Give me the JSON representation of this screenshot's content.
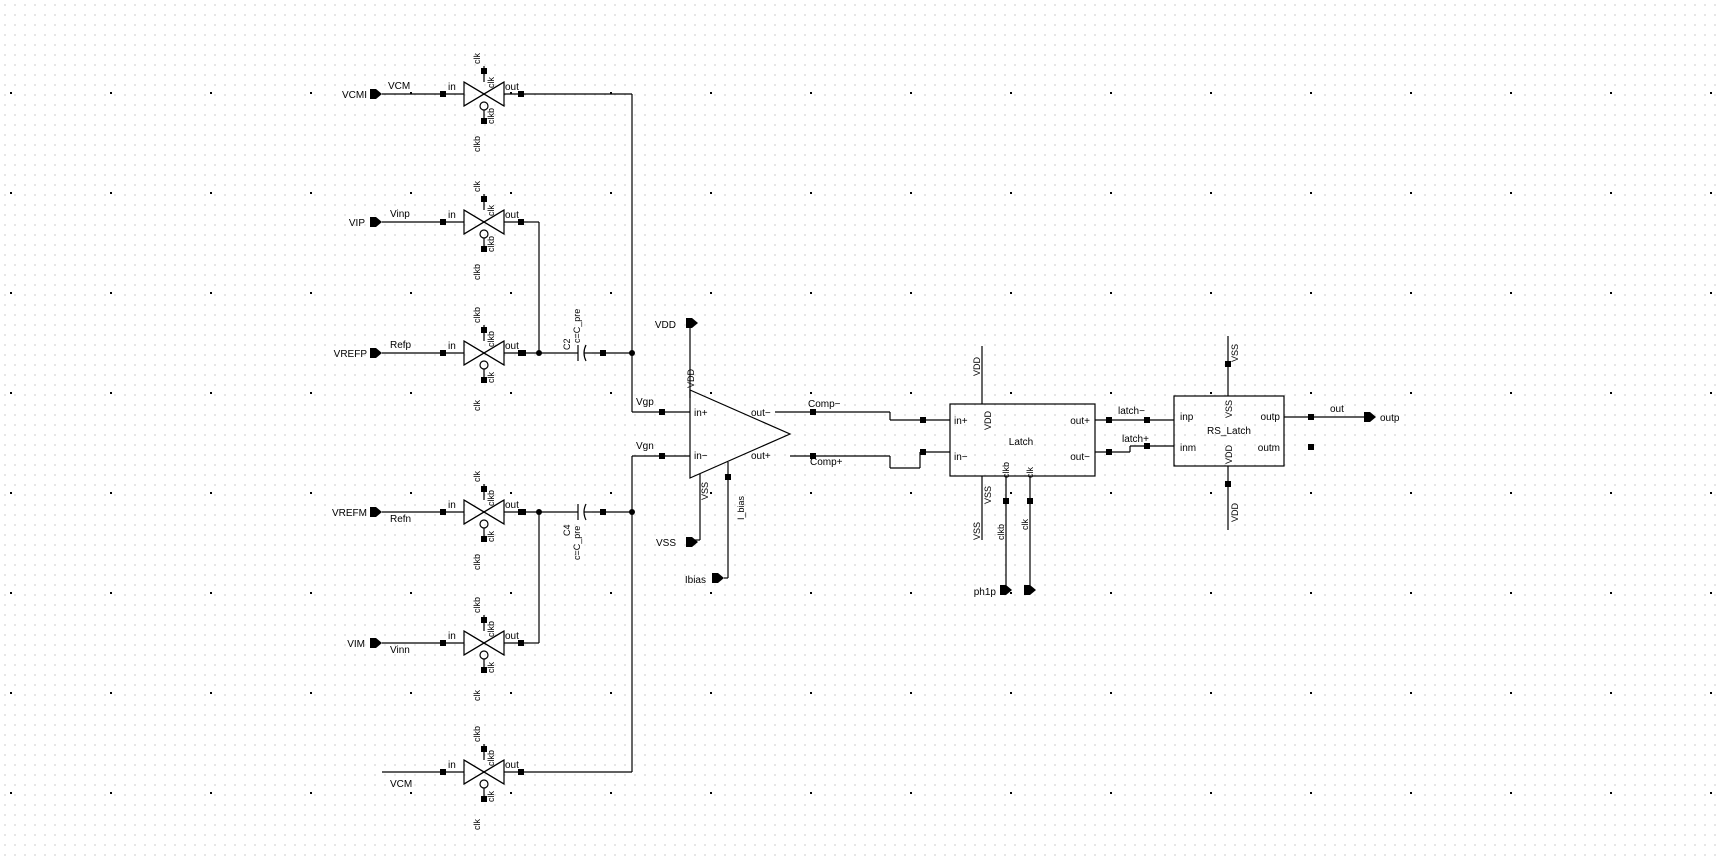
{
  "ports": {
    "vcmi": "VCMI",
    "vip": "VIP",
    "vrefp": "VREFP",
    "vrefm": "VREFM",
    "vim": "VIM",
    "vdd": "VDD",
    "vss": "VSS",
    "ibias": "Ibias",
    "ph1p": "ph1p",
    "outp": "outp"
  },
  "nets": {
    "vcm_top": "VCM",
    "vinp": "Vinp",
    "refp": "Refp",
    "refn": "Refn",
    "vinn": "Vinn",
    "vcm_bot": "VCM",
    "vgp": "Vgp",
    "vgn": "Vgn",
    "comp_minus": "Comp−",
    "comp_plus": "Comp+",
    "latch_minus": "latch−",
    "latch_plus": "latch+",
    "out": "out",
    "i_bias": "I_bias"
  },
  "switch_pins": {
    "in": "in",
    "out": "out",
    "clk": "clk",
    "clkb": "clkb"
  },
  "switches": [
    {
      "top": "clk",
      "bottom": "clkb",
      "top_inner": "clk",
      "bottom_inner": "clkb"
    },
    {
      "top": "clk",
      "bottom": "clkb",
      "top_inner": "clk",
      "bottom_inner": "clkb"
    },
    {
      "top": "clkb",
      "bottom": "clk",
      "top_inner": "clkb",
      "bottom_inner": "clk"
    },
    {
      "top": "clk",
      "bottom": "clkb",
      "top_inner": "clkb",
      "bottom_inner": "clk"
    },
    {
      "top": "clkb",
      "bottom": "clk",
      "top_inner": "clkb",
      "bottom_inner": "clk"
    },
    {
      "top": "clkb",
      "bottom": "clk",
      "top_inner": "clkb",
      "bottom_inner": "clk"
    }
  ],
  "caps": [
    {
      "name": "C2",
      "value": "c=C_pre"
    },
    {
      "name": "C4",
      "value": "c=C_pre"
    }
  ],
  "opamp": {
    "in_plus": "in+",
    "in_minus": "in−",
    "out_minus": "out−",
    "out_plus": "out+",
    "vdd": "VDD",
    "vss": "VSS",
    "i_bias": "I_bias"
  },
  "latch": {
    "name": "Latch",
    "in_plus": "in+",
    "in_minus": "in−",
    "out_plus": "out+",
    "out_minus": "out−",
    "vdd": "VDD",
    "vss": "VSS",
    "clkb": "clkb",
    "clk": "clk",
    "vdd_net": "VDD",
    "vss_net": "VSS",
    "clkb_net": "clkb",
    "clk_net": "clk"
  },
  "rs_latch": {
    "name": "RS_Latch",
    "inp": "inp",
    "inm": "inm",
    "outp": "outp",
    "outm": "outm",
    "vss": "VSS",
    "vdd": "VDD",
    "vss_net": "VSS",
    "vdd_net": "VDD"
  }
}
